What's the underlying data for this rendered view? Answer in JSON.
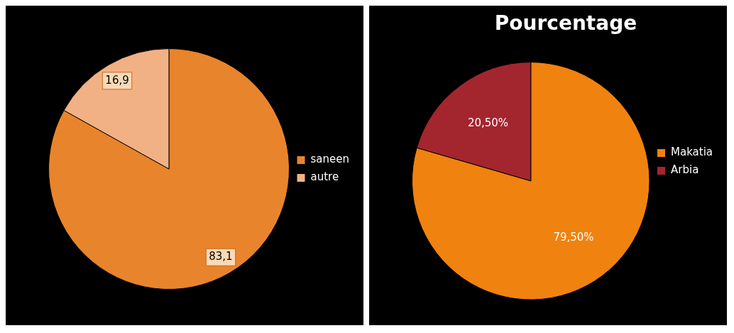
{
  "chart_data": [
    {
      "type": "pie",
      "categories": [
        "saneen",
        "autre"
      ],
      "values": [
        83.1,
        16.9
      ],
      "colors": [
        "#e8842c",
        "#f2b184"
      ],
      "value_labels": [
        "83,1",
        "16,9"
      ],
      "legend": "right"
    },
    {
      "type": "pie",
      "title": "Pourcentage",
      "categories": [
        "Makatia",
        "Arbia"
      ],
      "values": [
        79.5,
        20.5
      ],
      "colors": [
        "#f0820f",
        "#a3262f"
      ],
      "value_labels": [
        "79,50%",
        "20,50%"
      ],
      "legend": "right"
    }
  ]
}
